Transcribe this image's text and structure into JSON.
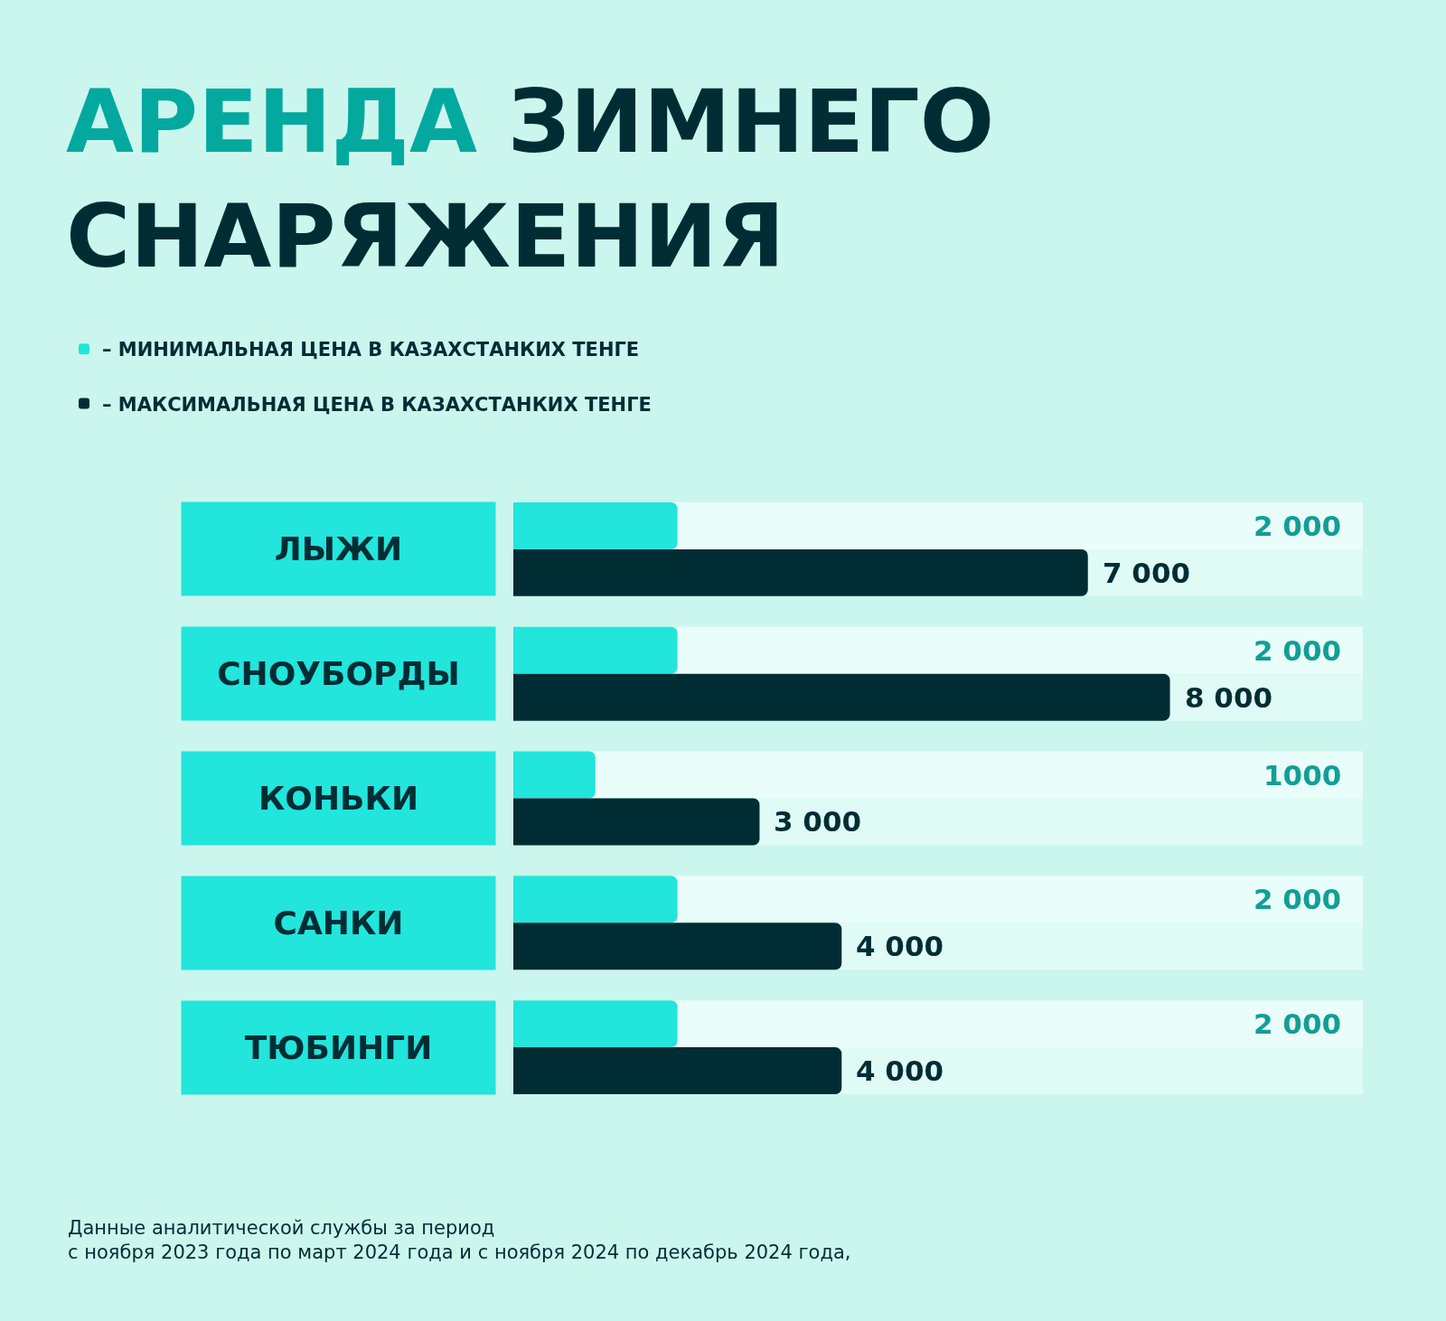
{
  "chart_data": {
    "type": "bar",
    "orientation": "horizontal",
    "title": "АРЕНДА ЗИМНЕГО\nСНАРЯЖЕНИЯ",
    "categories": [
      "ЛЫЖИ",
      "СНОУБОРДЫ",
      "КОНЬКИ",
      "САНКИ",
      "ТЮБИНГИ"
    ],
    "series": [
      {
        "name": "– МИНИМАЛЬНАЯ ЦЕНА В КАЗАХСТАНКИХ ТЕНГЕ",
        "color": "#22e5dc",
        "values": [
          2000,
          2000,
          1000,
          2000,
          2000
        ],
        "value_labels": [
          "2 000",
          "2 000",
          "1000",
          "2 000",
          "2 000"
        ]
      },
      {
        "name": "– МАКСИМАЛЬНАЯ ЦЕНА В КАЗАХСТАНКИХ ТЕНГЕ",
        "color": "#002d34",
        "values": [
          7000,
          8000,
          3000,
          4000,
          4000
        ],
        "value_labels": [
          "7 000",
          "8 000",
          "3 000",
          "4 000",
          "4 000"
        ]
      }
    ],
    "xlim": [
      0,
      10350
    ],
    "tick_labels": "y",
    "legend": "top left",
    "annotations": [
      "Данные аналитической службы за период\nс ноября 2023 года по март 2024 года и с ноября 2024 по декабрь 2024 года,"
    ]
  }
}
